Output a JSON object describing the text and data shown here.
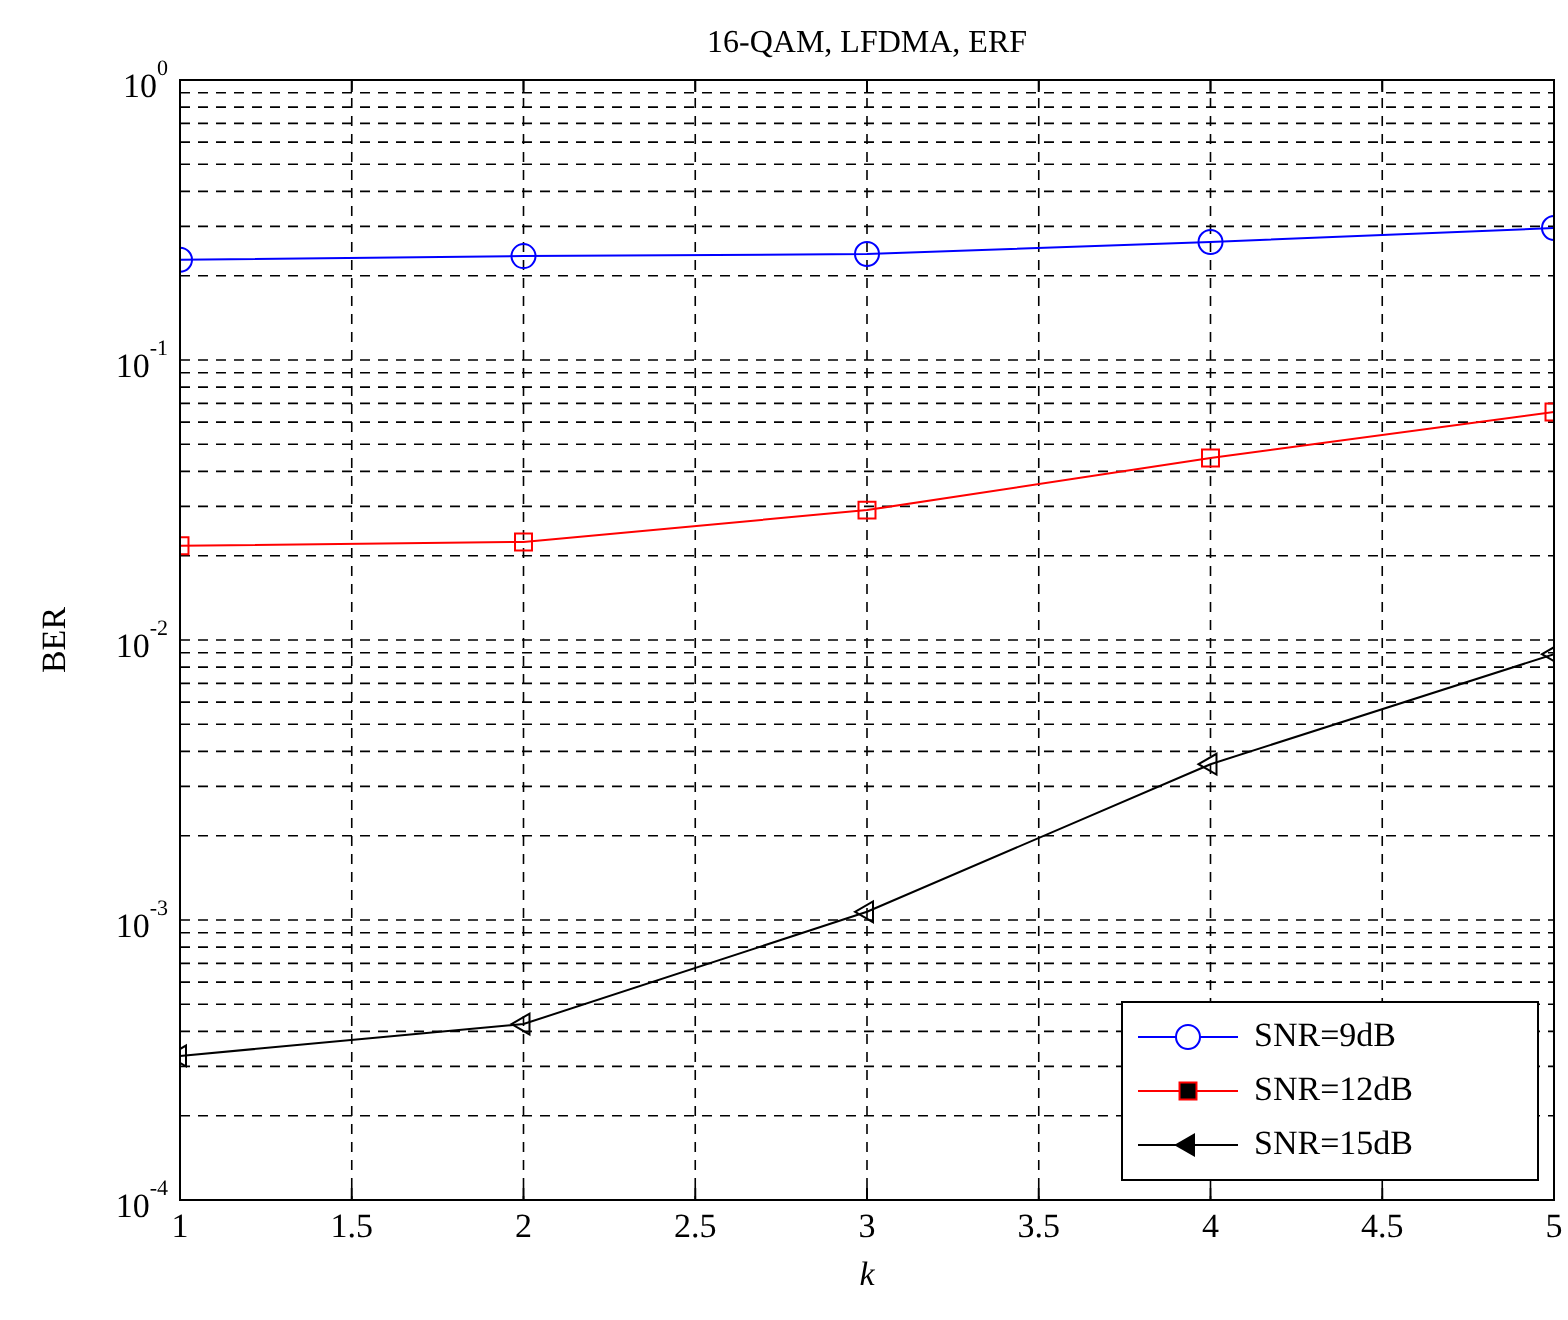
{
  "chart_data": {
    "type": "line",
    "title": "16-QAM, LFDMA, ERF",
    "xlabel": "k",
    "ylabel": "BER",
    "x": [
      1,
      2,
      3,
      4,
      5
    ],
    "series": [
      {
        "name": "SNR=9dB",
        "color": "#0000ff",
        "marker": "circle",
        "values": [
          0.228,
          0.235,
          0.239,
          0.264,
          0.296
        ]
      },
      {
        "name": "SNR=12dB",
        "color": "#ff0000",
        "marker": "square",
        "values": [
          0.0217,
          0.0224,
          0.0291,
          0.0447,
          0.0652
        ]
      },
      {
        "name": "SNR=15dB",
        "color": "#000000",
        "marker": "triangle",
        "values": [
          0.000327,
          0.000425,
          0.00107,
          0.0036,
          0.0089
        ]
      }
    ],
    "xlim": [
      1,
      5
    ],
    "xticks": [
      1,
      1.5,
      2,
      2.5,
      3,
      3.5,
      4,
      4.5,
      5
    ],
    "ylim": [
      0.0001,
      1
    ],
    "yticks": [
      {
        "value": 0.0001,
        "label": "10$^{-4}$"
      },
      {
        "value": 0.001,
        "label": "10$^{-3}$"
      },
      {
        "value": 0.01,
        "label": "10$^{-2}$"
      },
      {
        "value": 0.1,
        "label": "10$^{-1}$"
      },
      {
        "value": 1,
        "label": "10$^{0}$"
      }
    ],
    "log": "y",
    "grid": true,
    "legend": "bottom right",
    "line_style": "solid"
  }
}
